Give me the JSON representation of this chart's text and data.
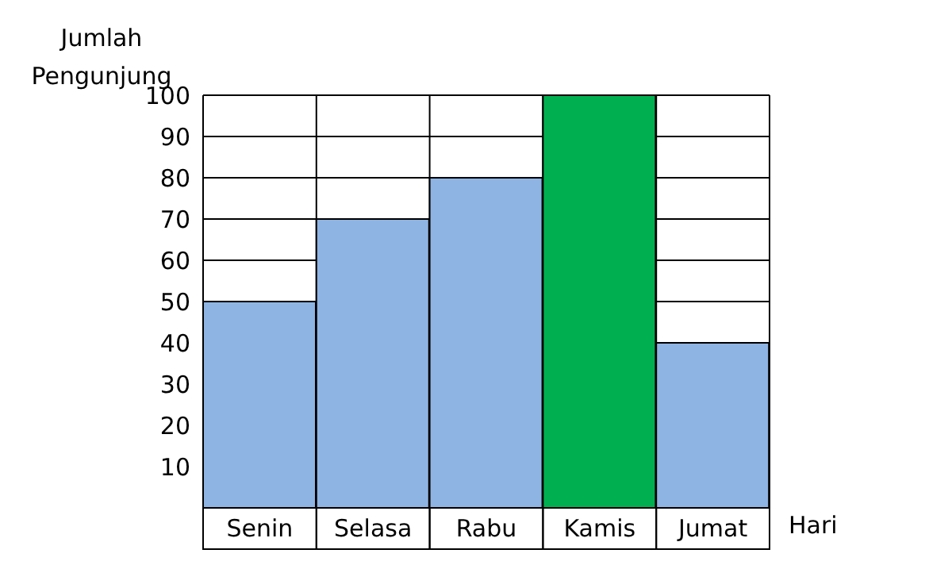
{
  "chart_data": {
    "type": "bar",
    "ylabel": "Jumlah Pengunjung",
    "xlabel": "Hari",
    "categories": [
      "Senin",
      "Selasa",
      "Rabu",
      "Kamis",
      "Jumat"
    ],
    "values": [
      50,
      70,
      80,
      100,
      40
    ],
    "colors": [
      "#8eb4e3",
      "#8eb4e3",
      "#8eb4e3",
      "#00b050",
      "#8eb4e3"
    ],
    "ylim": [
      0,
      100
    ],
    "yticks": [
      10,
      20,
      30,
      40,
      50,
      60,
      70,
      80,
      90,
      100
    ],
    "grid": true
  }
}
